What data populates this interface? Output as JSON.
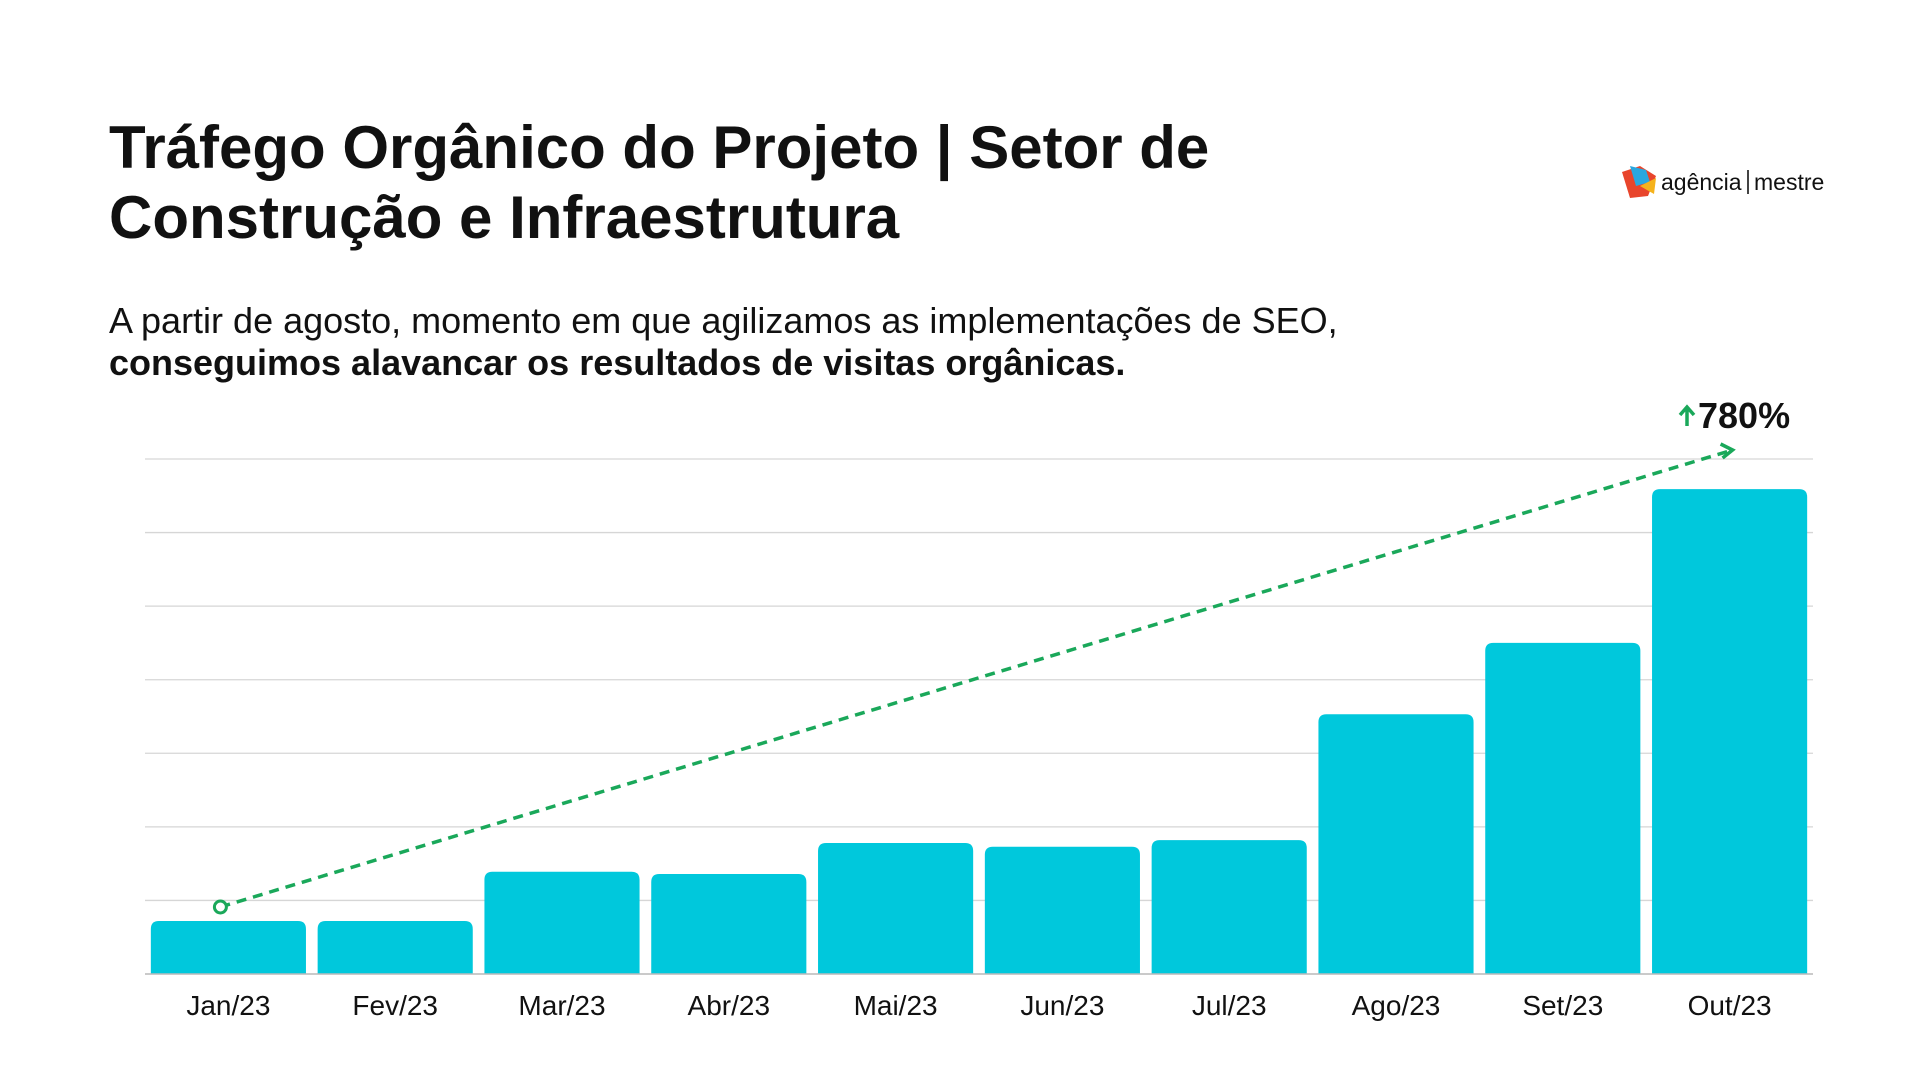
{
  "header": {
    "title": [
      "Tráfego Orgânico do Projeto | Setor de",
      "Construção e Infraestrutura"
    ],
    "subtitle": "A partir de agosto, momento em que agilizamos as implementações de SEO,",
    "subtitle_emphasis": "conseguimos alavancar os resultados de visitas orgânicas.",
    "logo": [
      "agência",
      "mestre"
    ]
  },
  "chart_data": {
    "type": "bar",
    "categories": [
      "Jan/23",
      "Fev/23",
      "Mar/23",
      "Abr/23",
      "Mai/23",
      "Jun/23",
      "Jul/23",
      "Ago/23",
      "Set/23",
      "Out/23"
    ],
    "values": [
      0.72,
      0.72,
      1.39,
      1.36,
      1.78,
      1.73,
      1.82,
      3.53,
      4.5,
      6.59
    ],
    "color": "#00c8dc",
    "ylim": [
      0,
      7
    ],
    "yticks": [
      0,
      1,
      2,
      3,
      4,
      5,
      6,
      7
    ],
    "grid": true,
    "annotation": "780%",
    "annotation_color": "#1aa85a"
  }
}
